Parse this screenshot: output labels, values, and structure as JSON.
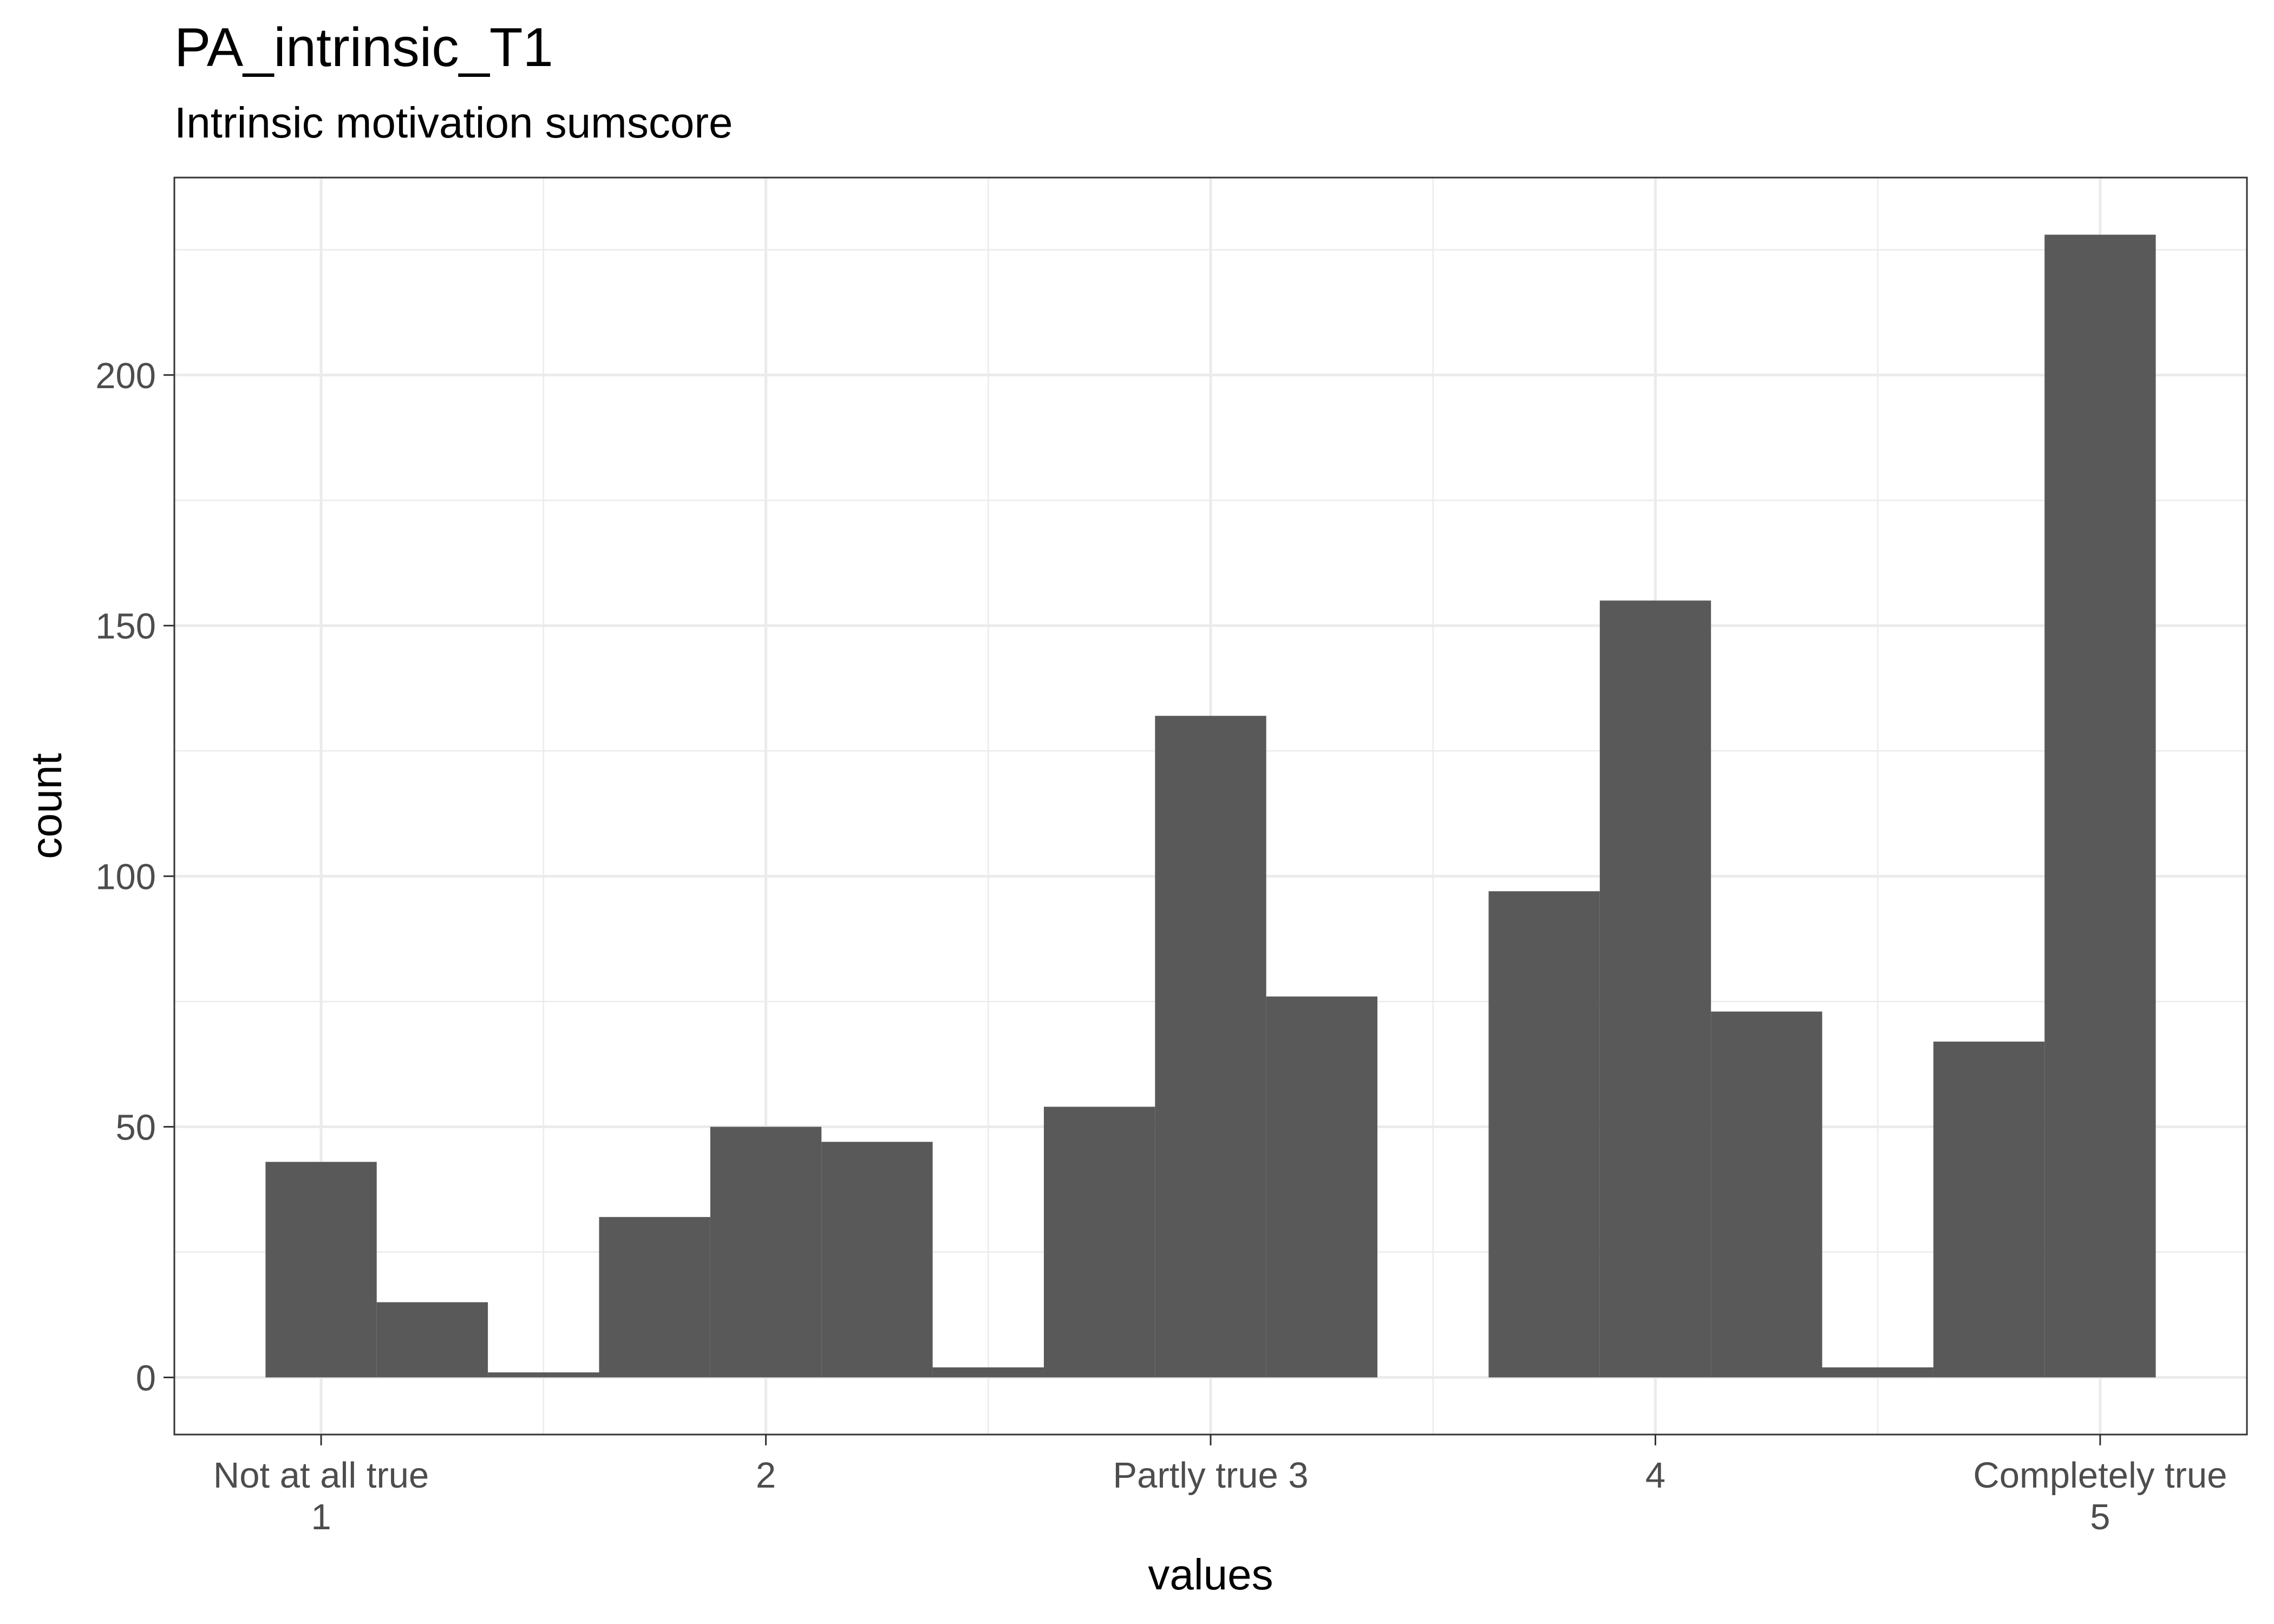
{
  "chart_data": {
    "type": "bar",
    "title": "PA_intrinsic_T1",
    "subtitle": "Intrinsic motivation sumscore",
    "xlabel": "values",
    "ylabel": "count",
    "xlim": [
      0.67,
      5.33
    ],
    "ylim": [
      -11.4,
      239.4
    ],
    "x_ticks": [
      {
        "value": 1,
        "lines": [
          "Not at all true",
          "1"
        ]
      },
      {
        "value": 2,
        "lines": [
          "2"
        ]
      },
      {
        "value": 3,
        "lines": [
          "Partly true 3"
        ]
      },
      {
        "value": 4,
        "lines": [
          "4"
        ]
      },
      {
        "value": 5,
        "lines": [
          "Completely true",
          "5"
        ]
      }
    ],
    "y_ticks": [
      0,
      50,
      100,
      150,
      200
    ],
    "bin_width": 0.25,
    "bins": [
      {
        "x": 1.0,
        "count": 43
      },
      {
        "x": 1.25,
        "count": 15
      },
      {
        "x": 1.5,
        "count": 1
      },
      {
        "x": 1.75,
        "count": 32
      },
      {
        "x": 2.0,
        "count": 50
      },
      {
        "x": 2.25,
        "count": 47
      },
      {
        "x": 2.5,
        "count": 2
      },
      {
        "x": 2.75,
        "count": 54
      },
      {
        "x": 3.0,
        "count": 132
      },
      {
        "x": 3.25,
        "count": 76
      },
      {
        "x": 3.75,
        "count": 97
      },
      {
        "x": 4.0,
        "count": 155
      },
      {
        "x": 4.25,
        "count": 73
      },
      {
        "x": 4.5,
        "count": 2
      },
      {
        "x": 4.75,
        "count": 67
      },
      {
        "x": 5.0,
        "count": 228
      }
    ],
    "bar_color": "#595959",
    "grid": true,
    "legend": "none"
  }
}
